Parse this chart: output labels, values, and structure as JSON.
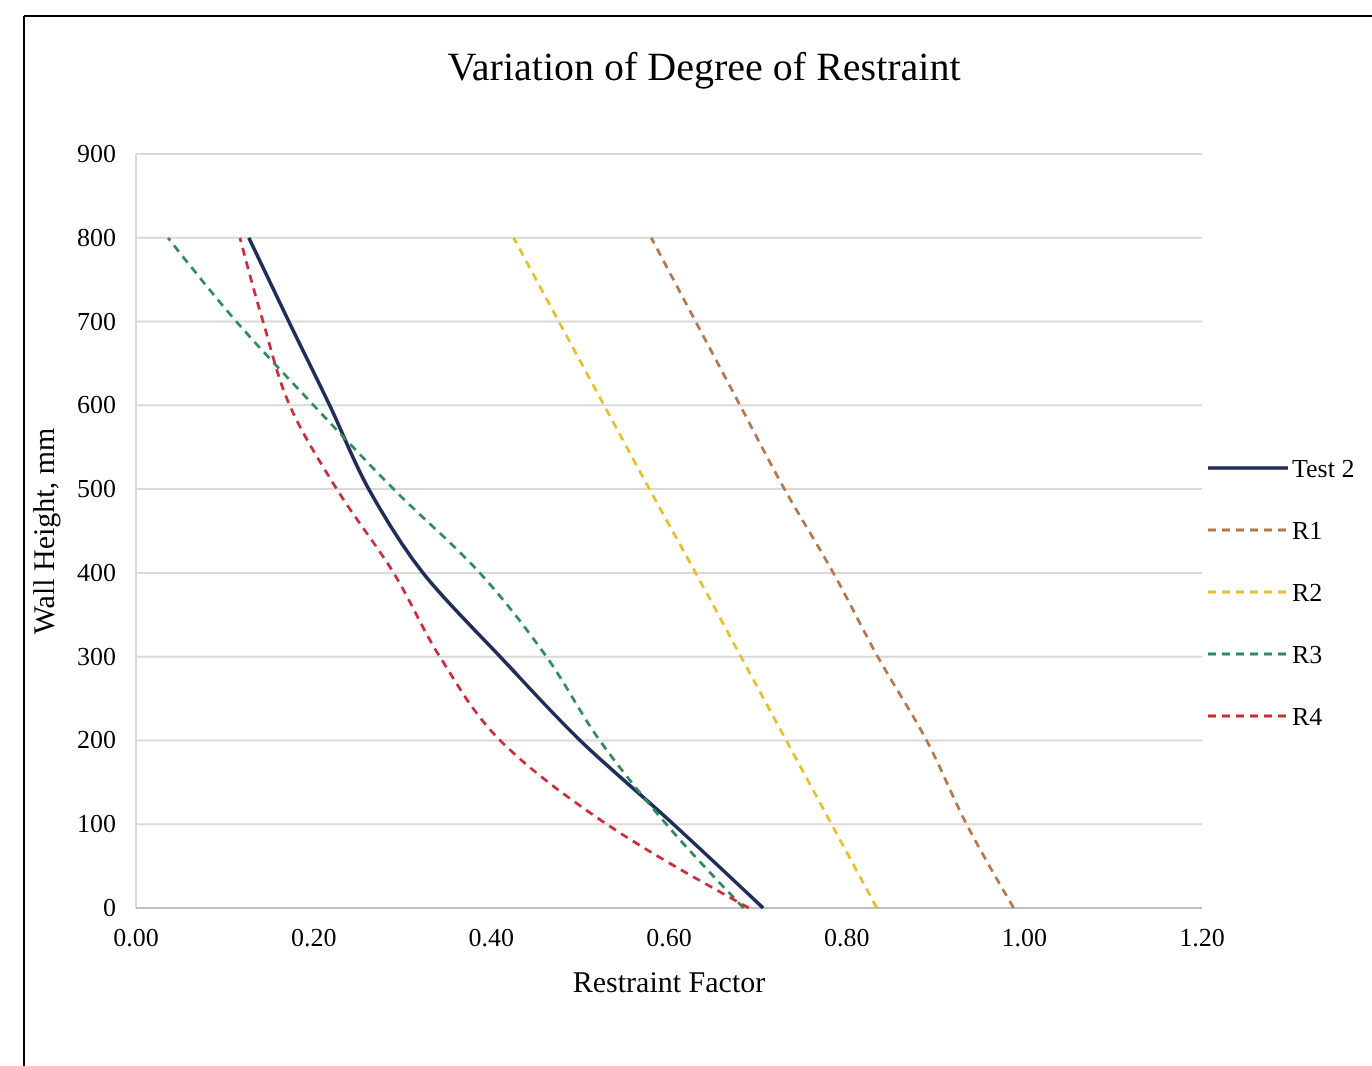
{
  "chart_data": {
    "type": "line",
    "title": "Variation of Degree of Restraint",
    "xlabel": "Restraint Factor",
    "ylabel": "Wall Height, mm",
    "xlim": [
      0,
      1.2
    ],
    "xticks": [
      {
        "value": 0,
        "label": "0.00"
      },
      {
        "value": 0.2,
        "label": "0.20"
      },
      {
        "value": 0.4,
        "label": "0.40"
      },
      {
        "value": 0.6,
        "label": "0.60"
      },
      {
        "value": 0.8,
        "label": "0.80"
      },
      {
        "value": 1,
        "label": "1.00"
      },
      {
        "value": 1.2,
        "label": "1.20"
      }
    ],
    "ylim": [
      0,
      900
    ],
    "yticks": [
      0,
      100,
      200,
      300,
      400,
      500,
      600,
      700,
      800,
      900
    ],
    "grid": "y",
    "legend": "right",
    "marker": "none",
    "series": [
      {
        "name": "Test 2",
        "color": "#1f2d5a",
        "line_style": "solid",
        "x": [
          0.706,
          0.605,
          0.5,
          0.41,
          0.323,
          0.262,
          0.218,
          0.172,
          0.127
        ],
        "values": [
          0,
          100,
          200,
          300,
          400,
          500,
          600,
          700,
          800
        ]
      },
      {
        "name": "R1",
        "color": "#b5764a",
        "line_style": "dashed",
        "x": [
          0.988,
          0.935,
          0.89,
          0.835,
          0.785,
          0.73,
          0.68,
          0.63,
          0.58
        ],
        "values": [
          0,
          100,
          200,
          300,
          400,
          500,
          600,
          700,
          800
        ]
      },
      {
        "name": "R2",
        "color": "#e6c02a",
        "line_style": "dashed",
        "x": [
          0.834,
          0.783,
          0.732,
          0.681,
          0.63,
          0.578,
          0.527,
          0.476,
          0.425
        ],
        "values": [
          0,
          100,
          200,
          300,
          400,
          500,
          600,
          700,
          800
        ]
      },
      {
        "name": "R3",
        "color": "#2e8b5e",
        "line_style": "dashed",
        "x": [
          0.684,
          0.597,
          0.522,
          0.462,
          0.387,
          0.29,
          0.2,
          0.113,
          0.036
        ],
        "values": [
          0,
          100,
          200,
          300,
          400,
          500,
          600,
          700,
          800
        ]
      },
      {
        "name": "R4",
        "color": "#d02a3a",
        "line_style": "dashed",
        "x": [
          0.69,
          0.53,
          0.41,
          0.342,
          0.29,
          0.226,
          0.173,
          0.143,
          0.117
        ],
        "values": [
          0,
          100,
          200,
          300,
          400,
          500,
          600,
          700,
          800
        ]
      }
    ]
  }
}
